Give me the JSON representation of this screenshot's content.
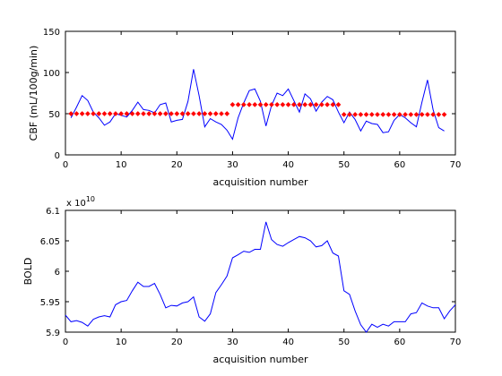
{
  "chart_data": [
    {
      "type": "line",
      "xlabel": "acquisition number",
      "ylabel": "CBF (mL/100g/min)",
      "xlim": [
        0,
        70
      ],
      "ylim": [
        0,
        150
      ],
      "xticks": [
        "0",
        "10",
        "20",
        "30",
        "40",
        "50",
        "60",
        "70"
      ],
      "yticks": [
        "0",
        "50",
        "100",
        "150"
      ],
      "series": [
        {
          "style": "line",
          "color": "#0000ff",
          "x": [
            1,
            2,
            3,
            4,
            5,
            6,
            7,
            8,
            9,
            10,
            11,
            12,
            13,
            14,
            15,
            16,
            17,
            18,
            19,
            20,
            21,
            22,
            23,
            24,
            25,
            26,
            27,
            28,
            29,
            30,
            31,
            32,
            33,
            34,
            35,
            36,
            37,
            38,
            39,
            40,
            41,
            42,
            43,
            44,
            45,
            46,
            47,
            48,
            49,
            50,
            51,
            52,
            53,
            54,
            55,
            56,
            57,
            58,
            59,
            60,
            61,
            62,
            63,
            64,
            65,
            66,
            67,
            68
          ],
          "y": [
            45,
            58,
            72,
            66,
            52,
            45,
            36,
            40,
            50,
            48,
            46,
            54,
            64,
            55,
            54,
            51,
            61,
            63,
            40,
            42,
            43,
            65,
            104,
            72,
            34,
            44,
            40,
            37,
            30,
            19,
            45,
            63,
            78,
            80,
            65,
            35,
            60,
            75,
            72,
            80,
            66,
            52,
            74,
            68,
            53,
            64,
            71,
            67,
            52,
            39,
            52,
            43,
            29,
            41,
            38,
            37,
            27,
            28,
            42,
            49,
            45,
            39,
            34,
            64,
            91,
            55,
            33,
            29
          ]
        },
        {
          "style": "markers",
          "color": "#ff0000",
          "segments": [
            {
              "x_start": 1,
              "x_end": 29,
              "y": 50
            },
            {
              "x_start": 30,
              "x_end": 49,
              "y": 61
            },
            {
              "x_start": 50,
              "x_end": 68,
              "y": 49
            }
          ]
        }
      ]
    },
    {
      "type": "line",
      "xlabel": "acquisition number",
      "ylabel": "BOLD",
      "multiplier_label": "x 10",
      "multiplier_exp": "10",
      "xlim": [
        0,
        70
      ],
      "ylim": [
        5.9,
        6.1
      ],
      "xticks": [
        "0",
        "10",
        "20",
        "30",
        "40",
        "50",
        "60",
        "70"
      ],
      "yticks": [
        "5.9",
        "5.95",
        "6",
        "6.05",
        "6.1"
      ],
      "series": [
        {
          "style": "line",
          "color": "#0000ff",
          "x": [
            0,
            1,
            2,
            3,
            4,
            5,
            6,
            7,
            8,
            9,
            10,
            11,
            12,
            13,
            14,
            15,
            16,
            17,
            18,
            19,
            20,
            21,
            22,
            23,
            24,
            25,
            26,
            27,
            28,
            29,
            30,
            31,
            32,
            33,
            34,
            35,
            36,
            37,
            38,
            39,
            40,
            41,
            42,
            43,
            44,
            45,
            46,
            47,
            48,
            49,
            50,
            51,
            52,
            53,
            54,
            55,
            56,
            57,
            58,
            59,
            60,
            61,
            62,
            63,
            64,
            65,
            66,
            67,
            68,
            69,
            70
          ],
          "y": [
            5.928,
            5.917,
            5.919,
            5.916,
            5.91,
            5.921,
            5.925,
            5.927,
            5.925,
            5.945,
            5.95,
            5.952,
            5.968,
            5.982,
            5.975,
            5.975,
            5.98,
            5.962,
            5.94,
            5.944,
            5.943,
            5.948,
            5.95,
            5.958,
            5.925,
            5.918,
            5.93,
            5.965,
            5.978,
            5.992,
            6.022,
            6.027,
            6.033,
            6.031,
            6.036,
            6.036,
            6.081,
            6.052,
            6.044,
            6.041,
            6.047,
            6.052,
            6.057,
            6.055,
            6.05,
            6.04,
            6.042,
            6.05,
            6.03,
            6.025,
            5.968,
            5.962,
            5.935,
            5.912,
            5.9,
            5.913,
            5.908,
            5.913,
            5.91,
            5.917,
            5.917,
            5.917,
            5.93,
            5.932,
            5.948,
            5.943,
            5.94,
            5.94,
            5.922,
            5.935,
            5.945
          ]
        }
      ]
    }
  ]
}
